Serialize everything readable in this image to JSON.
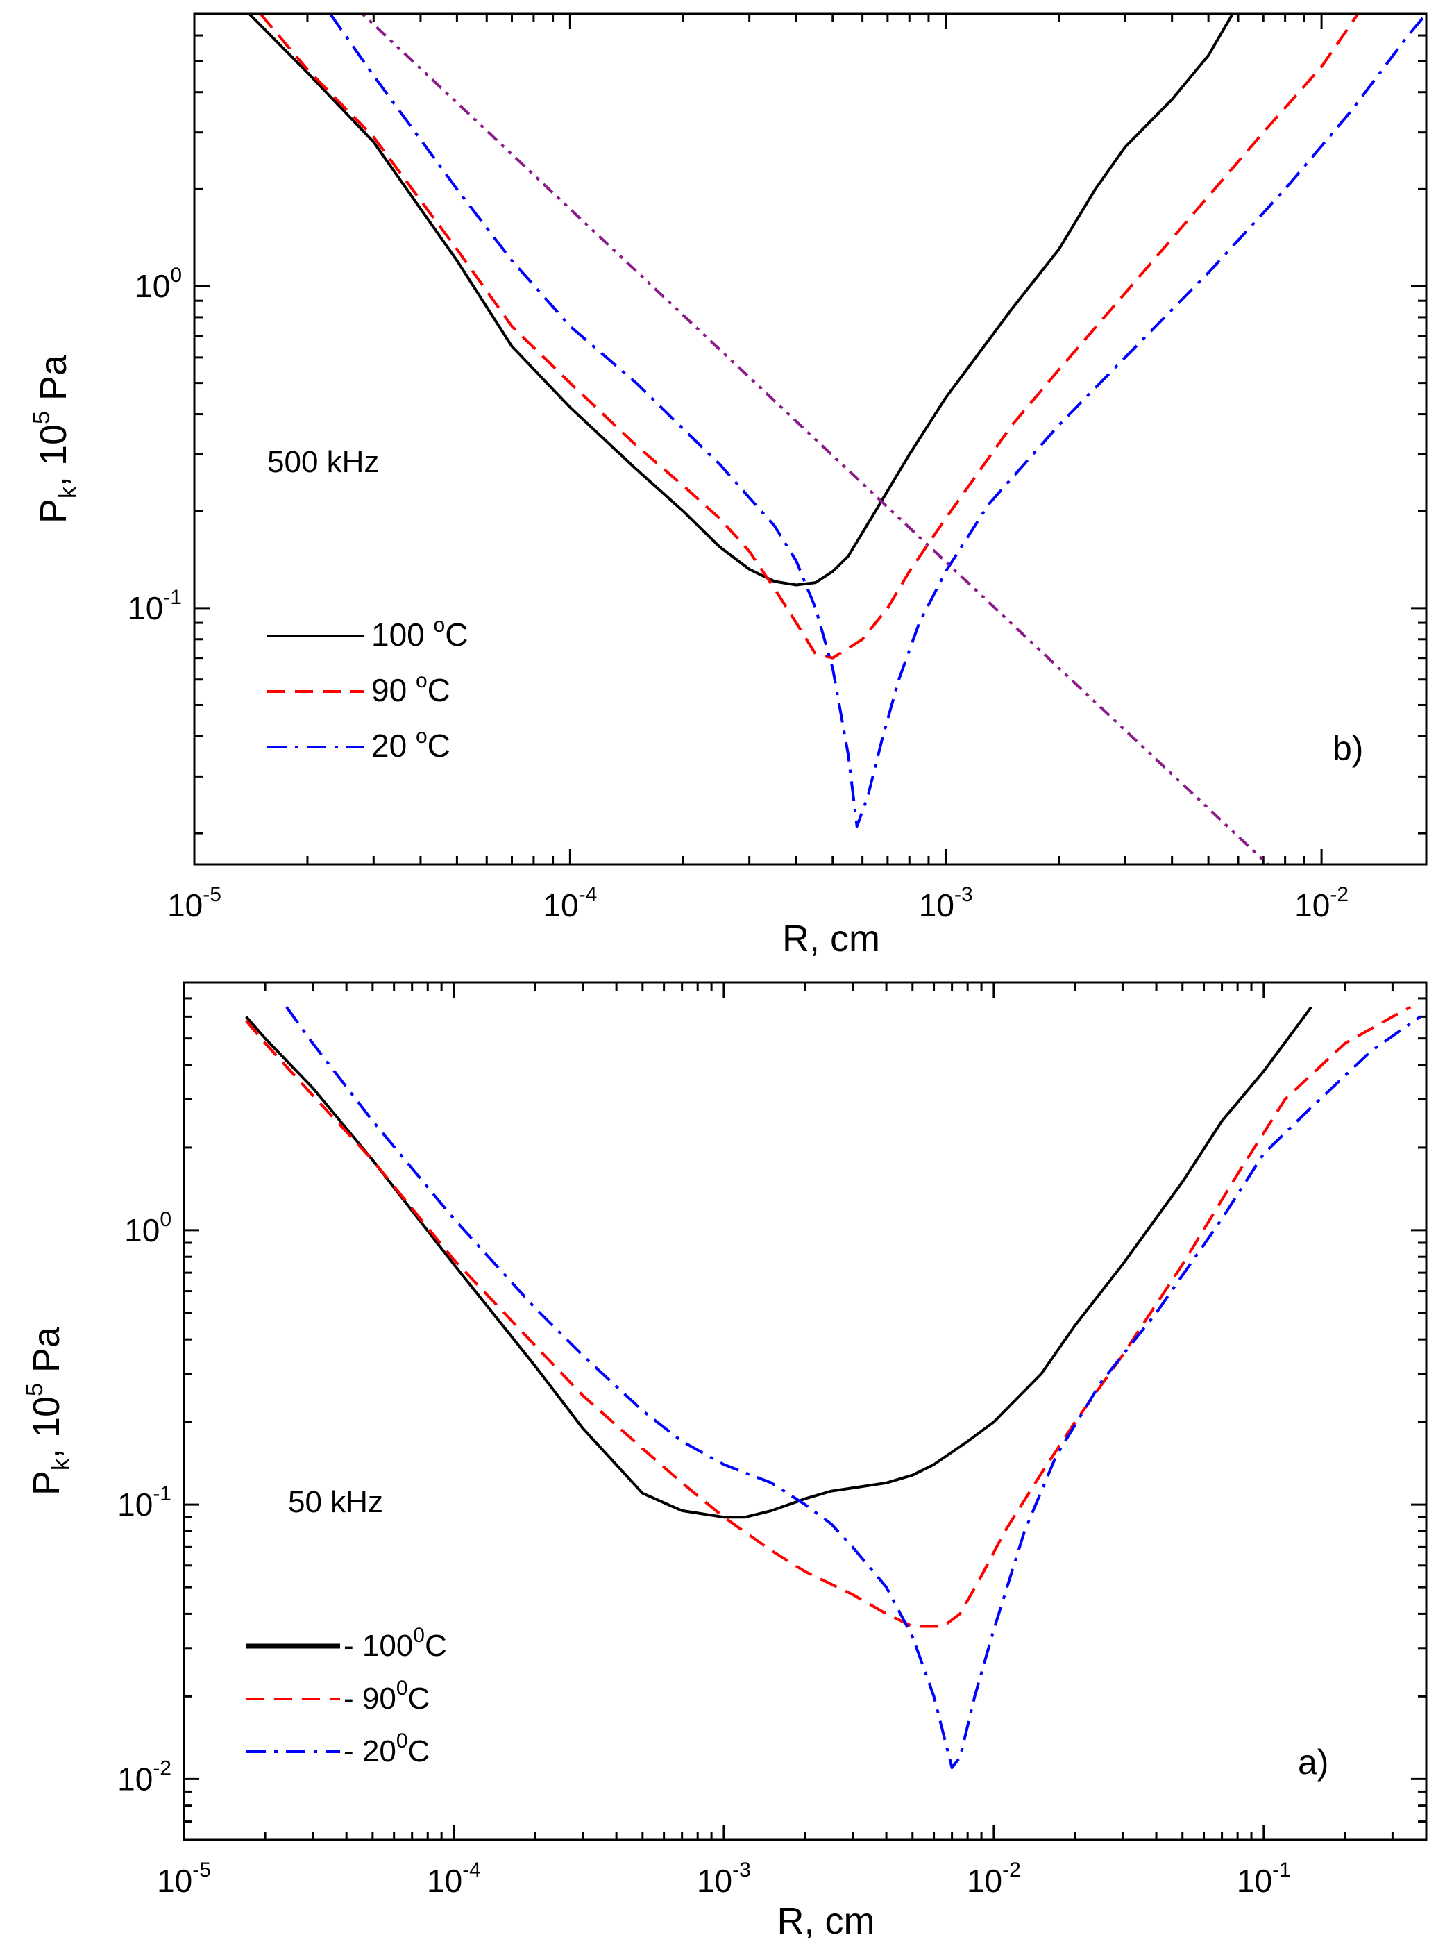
{
  "chart_data": [
    {
      "type": "line",
      "panel_label": "b)",
      "annotation": "500 kHz",
      "xlabel": "R, cm",
      "ylabel": {
        "main": "P",
        "sub": "k",
        "rest": ", 10",
        "sup": "5",
        "unit": " Pa"
      },
      "x_scale": "log",
      "y_scale": "log",
      "xlim": [
        1e-05,
        0.019
      ],
      "ylim": [
        0.016,
        7.0
      ],
      "x_ticks": [
        {
          "value": 1e-05,
          "base": "10",
          "exp": "-5"
        },
        {
          "value": 0.0001,
          "base": "10",
          "exp": "-4"
        },
        {
          "value": 0.001,
          "base": "10",
          "exp": "-3"
        },
        {
          "value": 0.01,
          "base": "10",
          "exp": "-2"
        }
      ],
      "y_ticks": [
        {
          "value": 0.1,
          "base": "10",
          "exp": "-1"
        },
        {
          "value": 1.0,
          "base": "10",
          "exp": "0"
        }
      ],
      "legend_placement": "lower-left",
      "series": [
        {
          "legend_label": "100 ",
          "legend_sup": "o",
          "legend_unit": "C",
          "color": "#000000",
          "style": "solid",
          "points": [
            [
              1.4e-05,
              7.0
            ],
            [
              2e-05,
              4.6
            ],
            [
              3e-05,
              2.8
            ],
            [
              5e-05,
              1.2
            ],
            [
              7e-05,
              0.65
            ],
            [
              0.0001,
              0.42
            ],
            [
              0.00015,
              0.27
            ],
            [
              0.0002,
              0.2
            ],
            [
              0.00025,
              0.155
            ],
            [
              0.0003,
              0.132
            ],
            [
              0.00035,
              0.121
            ],
            [
              0.0004,
              0.118
            ],
            [
              0.00045,
              0.12
            ],
            [
              0.0005,
              0.13
            ],
            [
              0.00055,
              0.145
            ],
            [
              0.00065,
              0.2
            ],
            [
              0.0008,
              0.3
            ],
            [
              0.001,
              0.45
            ],
            [
              0.0015,
              0.85
            ],
            [
              0.002,
              1.3
            ],
            [
              0.0025,
              2.0
            ],
            [
              0.003,
              2.7
            ],
            [
              0.004,
              3.8
            ],
            [
              0.005,
              5.2
            ],
            [
              0.0058,
              7.0
            ]
          ]
        },
        {
          "legend_label": "90 ",
          "legend_sup": "o",
          "legend_unit": "C",
          "color": "#ff0000",
          "style": "dashed",
          "points": [
            [
              1.5e-05,
              7.0
            ],
            [
              2e-05,
              4.7
            ],
            [
              3e-05,
              2.9
            ],
            [
              5e-05,
              1.3
            ],
            [
              7e-05,
              0.75
            ],
            [
              0.0001,
              0.5
            ],
            [
              0.00015,
              0.32
            ],
            [
              0.0002,
              0.24
            ],
            [
              0.00025,
              0.19
            ],
            [
              0.0003,
              0.15
            ],
            [
              0.00035,
              0.115
            ],
            [
              0.0004,
              0.09
            ],
            [
              0.00045,
              0.072
            ],
            [
              0.0005,
              0.07
            ],
            [
              0.0006,
              0.08
            ],
            [
              0.0007,
              0.1
            ],
            [
              0.0008,
              0.13
            ],
            [
              0.001,
              0.19
            ],
            [
              0.0015,
              0.37
            ],
            [
              0.002,
              0.55
            ],
            [
              0.003,
              0.95
            ],
            [
              0.005,
              1.9
            ],
            [
              0.007,
              3.0
            ],
            [
              0.01,
              4.8
            ],
            [
              0.0125,
              7.0
            ]
          ]
        },
        {
          "legend_label": "20 ",
          "legend_sup": "o",
          "legend_unit": "C",
          "color": "#0000ff",
          "style": "dashdot",
          "points": [
            [
              2.3e-05,
              7.0
            ],
            [
              3e-05,
              4.5
            ],
            [
              5e-05,
              2.0
            ],
            [
              7e-05,
              1.2
            ],
            [
              0.0001,
              0.75
            ],
            [
              0.00015,
              0.5
            ],
            [
              0.0002,
              0.36
            ],
            [
              0.00025,
              0.28
            ],
            [
              0.0003,
              0.22
            ],
            [
              0.00035,
              0.18
            ],
            [
              0.0004,
              0.14
            ],
            [
              0.00045,
              0.1
            ],
            [
              0.0005,
              0.065
            ],
            [
              0.00055,
              0.035
            ],
            [
              0.00058,
              0.021
            ],
            [
              0.00062,
              0.026
            ],
            [
              0.00068,
              0.04
            ],
            [
              0.00075,
              0.06
            ],
            [
              0.00085,
              0.09
            ],
            [
              0.001,
              0.13
            ],
            [
              0.0013,
              0.21
            ],
            [
              0.002,
              0.37
            ],
            [
              0.003,
              0.6
            ],
            [
              0.005,
              1.1
            ],
            [
              0.008,
              2.0
            ],
            [
              0.012,
              3.5
            ],
            [
              0.017,
              6.0
            ],
            [
              0.019,
              7.0
            ]
          ]
        },
        {
          "legend_label": "",
          "legend_sup": "",
          "legend_unit": "",
          "color": "#8b1a8b",
          "style": "dotted",
          "points": [
            [
              2.8e-05,
              7.0
            ],
            [
              0.0072,
              0.016
            ]
          ]
        }
      ]
    },
    {
      "type": "line",
      "panel_label": "a)",
      "annotation": "50 kHz",
      "xlabel": "R, cm",
      "ylabel": {
        "main": "P",
        "sub": "k",
        "rest": ", 10",
        "sup": "5",
        "unit": " Pa"
      },
      "x_scale": "log",
      "y_scale": "log",
      "xlim": [
        1e-05,
        0.4
      ],
      "ylim": [
        0.006,
        8.0
      ],
      "x_ticks": [
        {
          "value": 1e-05,
          "base": "10",
          "exp": "-5"
        },
        {
          "value": 0.0001,
          "base": "10",
          "exp": "-4"
        },
        {
          "value": 0.001,
          "base": "10",
          "exp": "-3"
        },
        {
          "value": 0.01,
          "base": "10",
          "exp": "-2"
        },
        {
          "value": 0.1,
          "base": "10",
          "exp": "-1"
        }
      ],
      "y_ticks": [
        {
          "value": 0.01,
          "base": "10",
          "exp": "-2"
        },
        {
          "value": 0.1,
          "base": "10",
          "exp": "-1"
        },
        {
          "value": 1.0,
          "base": "10",
          "exp": "0"
        }
      ],
      "legend_placement": "lower-left",
      "series": [
        {
          "legend_label": "- 100",
          "legend_sup": "0",
          "legend_unit": "C",
          "color": "#000000",
          "style": "solid",
          "points": [
            [
              1.7e-05,
              6.0
            ],
            [
              2e-05,
              5.0
            ],
            [
              3e-05,
              3.3
            ],
            [
              5e-05,
              1.8
            ],
            [
              0.0001,
              0.75
            ],
            [
              0.0002,
              0.32
            ],
            [
              0.0003,
              0.19
            ],
            [
              0.0005,
              0.11
            ],
            [
              0.0007,
              0.095
            ],
            [
              0.001,
              0.09
            ],
            [
              0.0012,
              0.09
            ],
            [
              0.0015,
              0.095
            ],
            [
              0.002,
              0.105
            ],
            [
              0.0025,
              0.112
            ],
            [
              0.003,
              0.115
            ],
            [
              0.004,
              0.12
            ],
            [
              0.005,
              0.128
            ],
            [
              0.006,
              0.14
            ],
            [
              0.008,
              0.17
            ],
            [
              0.01,
              0.2
            ],
            [
              0.015,
              0.3
            ],
            [
              0.02,
              0.45
            ],
            [
              0.03,
              0.75
            ],
            [
              0.05,
              1.5
            ],
            [
              0.07,
              2.5
            ],
            [
              0.1,
              3.8
            ],
            [
              0.15,
              6.5
            ]
          ]
        },
        {
          "legend_label": "- 90",
          "legend_sup": "0",
          "legend_unit": "C",
          "color": "#ff0000",
          "style": "dashed",
          "points": [
            [
              1.7e-05,
              5.8
            ],
            [
              2e-05,
              4.8
            ],
            [
              3e-05,
              3.1
            ],
            [
              5e-05,
              1.8
            ],
            [
              0.0001,
              0.78
            ],
            [
              0.0002,
              0.38
            ],
            [
              0.0003,
              0.25
            ],
            [
              0.0005,
              0.16
            ],
            [
              0.0007,
              0.12
            ],
            [
              0.001,
              0.09
            ],
            [
              0.0015,
              0.068
            ],
            [
              0.002,
              0.057
            ],
            [
              0.003,
              0.047
            ],
            [
              0.004,
              0.04
            ],
            [
              0.005,
              0.036
            ],
            [
              0.0065,
              0.036
            ],
            [
              0.0075,
              0.04
            ],
            [
              0.009,
              0.055
            ],
            [
              0.011,
              0.08
            ],
            [
              0.015,
              0.13
            ],
            [
              0.02,
              0.2
            ],
            [
              0.03,
              0.35
            ],
            [
              0.05,
              0.75
            ],
            [
              0.08,
              1.6
            ],
            [
              0.12,
              3.0
            ],
            [
              0.2,
              4.8
            ],
            [
              0.3,
              6.0
            ],
            [
              0.35,
              6.5
            ]
          ]
        },
        {
          "legend_label": "- 20",
          "legend_sup": "0",
          "legend_unit": "C",
          "color": "#0000ff",
          "style": "dashdot",
          "points": [
            [
              2.4e-05,
              6.5
            ],
            [
              3e-05,
              4.8
            ],
            [
              5e-05,
              2.5
            ],
            [
              0.0001,
              1.1
            ],
            [
              0.0002,
              0.52
            ],
            [
              0.0003,
              0.35
            ],
            [
              0.0005,
              0.22
            ],
            [
              0.0007,
              0.17
            ],
            [
              0.001,
              0.14
            ],
            [
              0.0015,
              0.12
            ],
            [
              0.002,
              0.1
            ],
            [
              0.0025,
              0.085
            ],
            [
              0.003,
              0.07
            ],
            [
              0.004,
              0.05
            ],
            [
              0.005,
              0.033
            ],
            [
              0.006,
              0.02
            ],
            [
              0.007,
              0.011
            ],
            [
              0.0075,
              0.012
            ],
            [
              0.0085,
              0.02
            ],
            [
              0.01,
              0.035
            ],
            [
              0.013,
              0.08
            ],
            [
              0.017,
              0.15
            ],
            [
              0.025,
              0.28
            ],
            [
              0.04,
              0.5
            ],
            [
              0.07,
              1.1
            ],
            [
              0.1,
              1.9
            ],
            [
              0.15,
              2.8
            ],
            [
              0.25,
              4.5
            ],
            [
              0.38,
              6.0
            ]
          ]
        }
      ]
    }
  ]
}
